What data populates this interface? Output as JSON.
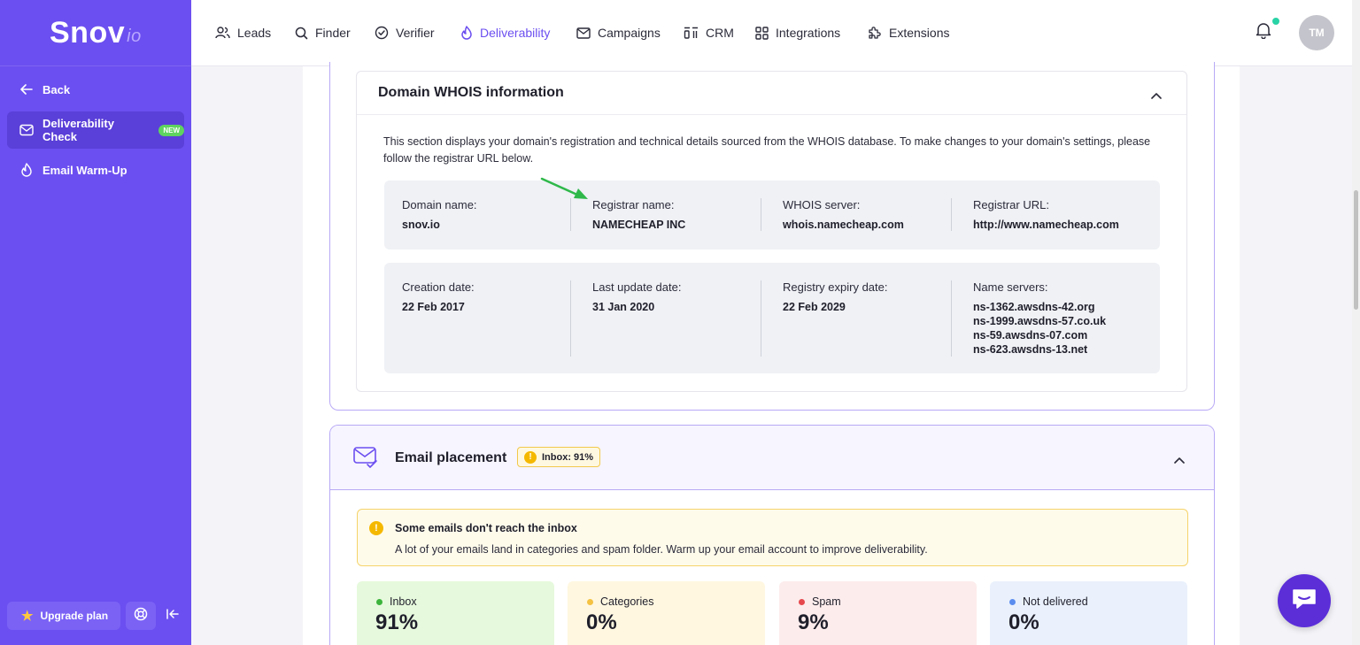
{
  "app": {
    "logo_main": "Snov",
    "logo_suffix": "io"
  },
  "sidebar": {
    "back": "Back",
    "items": [
      {
        "label": "Deliverability Check",
        "badge": "NEW"
      },
      {
        "label": "Email Warm-Up"
      }
    ],
    "upgrade_label": "Upgrade plan"
  },
  "nav": {
    "items": [
      "Leads",
      "Finder",
      "Verifier",
      "Deliverability",
      "Campaigns",
      "CRM",
      "Integrations",
      "Extensions"
    ],
    "active": "Deliverability",
    "avatar_initials": "TM"
  },
  "whois": {
    "title": "Domain WHOIS information",
    "description": "This section displays your domain's registration and technical details sourced from the WHOIS database. To make changes to your domain's settings, please follow the registrar URL below.",
    "row1": [
      {
        "label": "Domain name:",
        "value": "snov.io"
      },
      {
        "label": "Registrar name:",
        "value": "NAMECHEAP INC"
      },
      {
        "label": "WHOIS server:",
        "value": "whois.namecheap.com"
      },
      {
        "label": "Registrar URL:",
        "value": "http://www.namecheap.com"
      }
    ],
    "row2": [
      {
        "label": "Creation date:",
        "value": "22 Feb 2017"
      },
      {
        "label": "Last update date:",
        "value": "31 Jan 2020"
      },
      {
        "label": "Registry expiry date:",
        "value": "22 Feb 2029"
      },
      {
        "label": "Name servers:",
        "values": [
          "ns-1362.awsdns-42.org",
          "ns-1999.awsdns-57.co.uk",
          "ns-59.awsdns-07.com",
          "ns-623.awsdns-13.net"
        ]
      }
    ]
  },
  "placement": {
    "title": "Email placement",
    "inbox_pill": "Inbox: 91%",
    "alert_title": "Some emails don't reach the inbox",
    "alert_text": "A lot of your emails land in categories and spam folder. Warm up your email account to improve deliverability.",
    "stats": [
      {
        "label": "Inbox",
        "value": "91%",
        "dot_color": "#3cb43c",
        "bg": "#e6f9dc"
      },
      {
        "label": "Categories",
        "value": "0%",
        "dot_color": "#f5c242",
        "bg": "#fff7e0"
      },
      {
        "label": "Spam",
        "value": "9%",
        "dot_color": "#e5484d",
        "bg": "#fdecec"
      },
      {
        "label": "Not delivered",
        "value": "0%",
        "dot_color": "#5b8def",
        "bg": "#eaf1fc"
      }
    ]
  },
  "colors": {
    "brand": "#6c4ff0",
    "accent_green": "#29d3a6",
    "annotation_arrow": "#2fb84a"
  }
}
